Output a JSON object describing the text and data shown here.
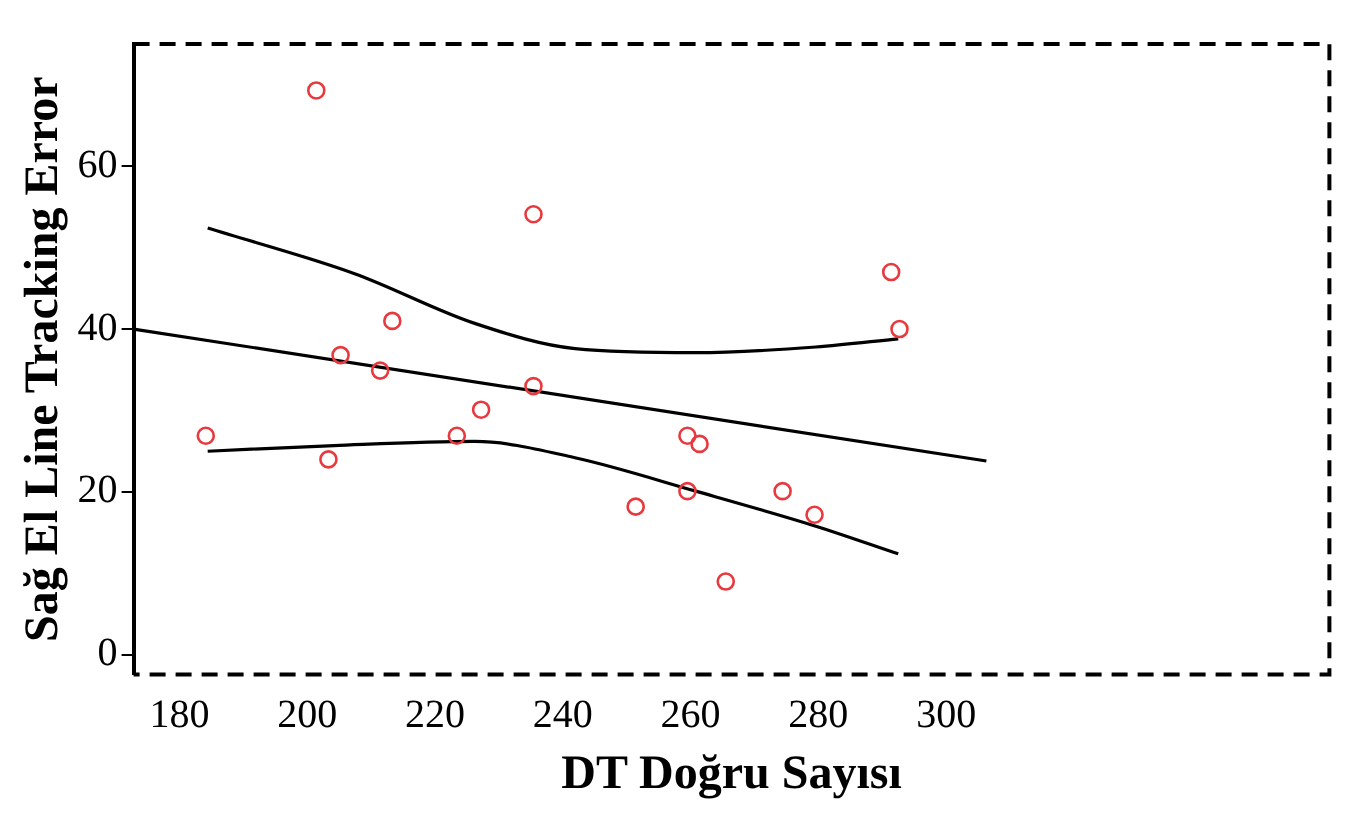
{
  "chart_data": {
    "type": "scatter",
    "xlabel": "DT Doğru Sayısı",
    "ylabel": "Sağ El Line Tracking Error",
    "xlim": [
      172.8,
      360
    ],
    "xticks": [
      180,
      200,
      220,
      240,
      260,
      280,
      300
    ],
    "ylim": [
      -2.4,
      75
    ],
    "yticks": [
      0,
      20,
      40,
      60
    ],
    "grid": false,
    "legend": false,
    "marker": "circle",
    "series": [
      {
        "type": "scatter",
        "color": "#e8393f",
        "x": [
          184.1,
          201.4,
          205.2,
          203.3,
          211.4,
          213.3,
          223.4,
          227.2,
          235.4,
          235.4,
          251.4,
          259.5,
          259.5,
          261.4,
          265.5,
          274.4,
          279.4,
          291.4,
          292.7
        ],
        "values": [
          26.9,
          69.3,
          36.8,
          24.0,
          34.9,
          41.0,
          26.9,
          30.1,
          54.1,
          33.0,
          18.2,
          26.9,
          20.1,
          25.9,
          9.0,
          20.1,
          17.2,
          47.0,
          40.0
        ]
      },
      {
        "type": "line",
        "color": "#000000",
        "marker": "none",
        "x": [
          172.8,
          306.3
        ],
        "values": [
          40,
          23.8
        ]
      },
      {
        "type": "line",
        "color": "#000000",
        "marker": "none",
        "x": [
          184.4,
          207.4,
          226.2,
          241.9,
          260.8,
          279.6,
          292.5
        ],
        "values": [
          52.4,
          46.8,
          40.7,
          37.6,
          37.1,
          37.8,
          38.8
        ]
      },
      {
        "type": "line",
        "color": "#000000",
        "marker": "none",
        "x": [
          184.4,
          204.2,
          226.2,
          241.9,
          260.8,
          279.6,
          292.5
        ],
        "values": [
          25,
          25.7,
          26.2,
          24.2,
          20.1,
          15.8,
          12.4
        ]
      }
    ]
  }
}
